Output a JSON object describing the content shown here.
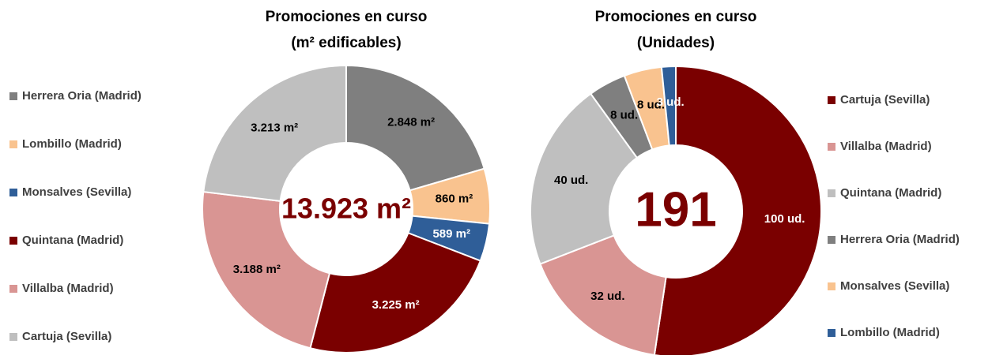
{
  "chart_data": [
    {
      "type": "donut",
      "title": "Promociones en curso",
      "subtitle": "(m² edificables)",
      "categories": [
        "Herrera Oria (Madrid)",
        "Lombillo (Madrid)",
        "Monsalves (Sevilla)",
        "Quintana (Madrid)",
        "Villalba (Madrid)",
        "Cartuja (Sevilla)"
      ],
      "values": [
        2848,
        860,
        589,
        3225,
        3188,
        3213
      ],
      "value_labels": [
        "2.848 m²",
        "860 m²",
        "589 m²",
        "3.225 m²",
        "3.188 m²",
        "3.213 m²"
      ],
      "colors": [
        "#7f7f7f",
        "#f9c38f",
        "#2f5e98",
        "#7a0000",
        "#d99593",
        "#bfbfbf"
      ],
      "total": 13923,
      "total_label": "13.923 m²",
      "legend": "left"
    },
    {
      "type": "donut",
      "title": "Promociones en curso",
      "subtitle": "(Unidades)",
      "categories": [
        "Cartuja (Sevilla)",
        "Villalba (Madrid)",
        "Quintana (Madrid)",
        "Herrera Oria (Madrid)",
        "Monsalves (Sevilla)",
        "Lombillo (Madrid)"
      ],
      "values": [
        100,
        32,
        40,
        8,
        8,
        3
      ],
      "value_labels": [
        "100 ud.",
        "32 ud.",
        "40 ud.",
        "8 ud.",
        "8 ud.",
        "3 ud."
      ],
      "colors": [
        "#7a0000",
        "#d99593",
        "#bfbfbf",
        "#7f7f7f",
        "#f9c38f",
        "#2f5e98"
      ],
      "total": 191,
      "legend": "right"
    }
  ]
}
